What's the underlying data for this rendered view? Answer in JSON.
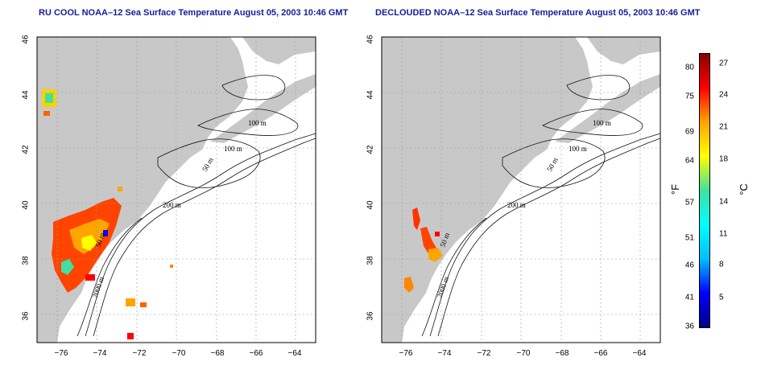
{
  "titles": {
    "left": "RU COOL NOAA–12 Sea Surface Temperature August 05, 2003 10:46 GMT",
    "right": "DECLOUDED NOAA–12 Sea Surface Temperature August 05, 2003 10:46 GMT"
  },
  "map": {
    "lon_range": [
      -77.0,
      -63.0
    ],
    "lat_range": [
      35.0,
      46.0
    ],
    "lon_ticks": [
      "−76",
      "−74",
      "−72",
      "−70",
      "−68",
      "−66",
      "−64"
    ],
    "lat_ticks": [
      "36",
      "38",
      "40",
      "42",
      "44",
      "46"
    ],
    "grid": "dotted",
    "land_color": "#c8c8c8",
    "ocean_color": "#ffffff",
    "contour_labels": [
      "100 m",
      "100 m",
      "50 m",
      "200 m",
      "50 m",
      "2000 m"
    ]
  },
  "colorbar": {
    "fahrenheit_ticks": [
      "80",
      "75",
      "69",
      "64",
      "57",
      "51",
      "46",
      "41",
      "36"
    ],
    "celsius_ticks": [
      "27",
      "24",
      "21",
      "18",
      "14",
      "11",
      "8",
      "5"
    ],
    "f_unit": "°F",
    "c_unit": "°C",
    "colors": [
      "#00008b",
      "#0000ff",
      "#00bfff",
      "#00ffff",
      "#40e0a0",
      "#ffff00",
      "#ffa500",
      "#ff0000",
      "#8b0000"
    ]
  }
}
